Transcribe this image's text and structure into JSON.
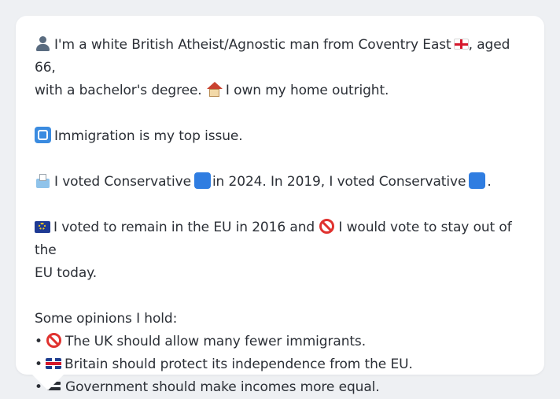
{
  "profile": {
    "identity_line_1a": "I'm a white British Atheist/Agnostic man from Coventry East",
    "identity_line_1b": ", aged 66,",
    "identity_line_2": "with a bachelor's degree.",
    "home": "I own my home outright.",
    "top_issue": "Immigration is my top issue.",
    "vote_2024a": "I voted Conservative",
    "vote_2024b": "in 2024. In 2019, I voted Conservative",
    "vote_end": ".",
    "eu_line_1a": "I voted to remain in the EU in 2016 and",
    "eu_line_1b": "I would vote to stay out of the",
    "eu_line_2": "EU today.",
    "opinions_heading": "Some opinions I hold:",
    "opinions": [
      {
        "bullet": "•",
        "icon": "prohibited-icon",
        "text": "The UK should allow many fewer immigrants."
      },
      {
        "bullet": "•",
        "icon": "uk-flag-icon",
        "text": "Britain should protect its independence from the EU."
      },
      {
        "bullet": "•",
        "icon": "equals-icon",
        "text": "Government should make incomes more equal."
      }
    ]
  },
  "icons": {
    "person": "person-icon",
    "england_flag": "england-flag-icon",
    "house": "house-icon",
    "passport": "passport-control-icon",
    "ballot": "ballot-box-icon",
    "conservative": "blue-square-icon",
    "eu": "eu-flag-icon",
    "prohibited": "prohibited-icon"
  },
  "colors": {
    "background": "#eef0f3",
    "card": "#ffffff",
    "text": "#2b2f36",
    "conservative_blue": "#2f7de1"
  }
}
